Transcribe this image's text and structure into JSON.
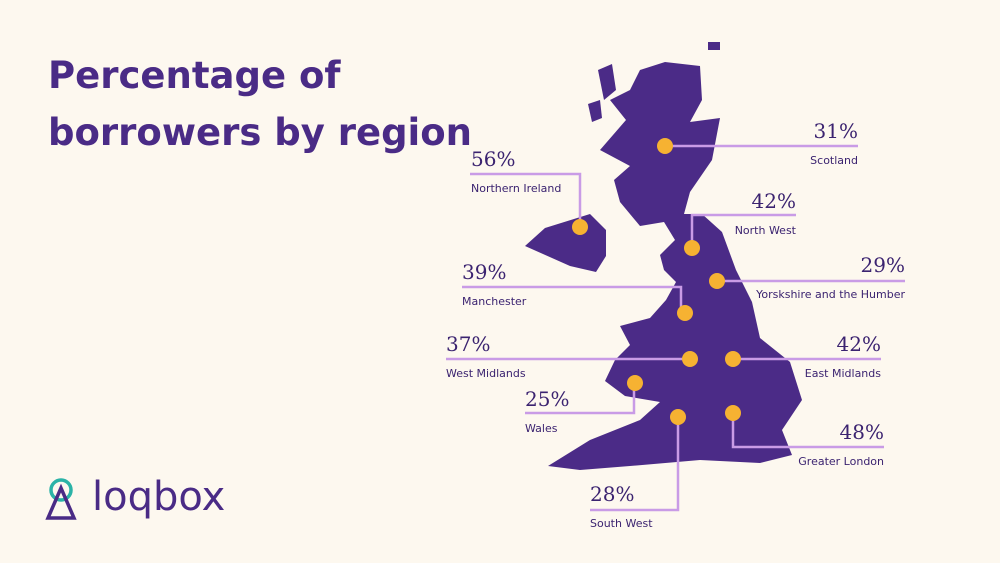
{
  "title": "Percentage of borrowers by region",
  "logo": "loqbox",
  "regions": [
    {
      "name": "Scotland",
      "percent": "31%"
    },
    {
      "name": "Northern Ireland",
      "percent": "56%"
    },
    {
      "name": "North West",
      "percent": "42%"
    },
    {
      "name": "Yorskshire and the Humber",
      "percent": "29%"
    },
    {
      "name": "Manchester",
      "percent": "39%"
    },
    {
      "name": "West Midlands",
      "percent": "37%"
    },
    {
      "name": "East Midlands",
      "percent": "42%"
    },
    {
      "name": "Wales",
      "percent": "25%"
    },
    {
      "name": "Greater London",
      "percent": "48%"
    },
    {
      "name": "South West",
      "percent": "28%"
    }
  ]
}
